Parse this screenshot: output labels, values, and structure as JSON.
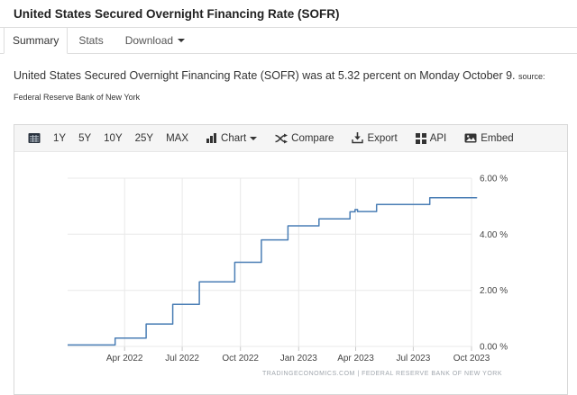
{
  "page": {
    "title": "United States Secured Overnight Financing Rate (SOFR)"
  },
  "tabs": [
    {
      "label": "Summary",
      "active": true
    },
    {
      "label": "Stats",
      "active": false
    },
    {
      "label": "Download",
      "active": false,
      "has_caret": true
    }
  ],
  "summary": {
    "text": "United States Secured Overnight Financing Rate (SOFR) was at 5.32 percent on Monday October 9.",
    "source_label": "source:",
    "source": "Federal Reserve Bank of New York"
  },
  "toolbar": {
    "calendar_icon": "calendar-table-icon",
    "range_buttons": [
      "1Y",
      "5Y",
      "10Y",
      "25Y",
      "MAX"
    ],
    "chart_label": "Chart",
    "compare_label": "Compare",
    "export_label": "Export",
    "api_label": "API",
    "embed_label": "Embed"
  },
  "chart_data": {
    "type": "line",
    "line_style": "step-after",
    "title": "",
    "xlabel": "",
    "ylabel": "",
    "ylim": [
      0,
      6
    ],
    "x_range": [
      "2022-01-01",
      "2023-10-01"
    ],
    "grid": true,
    "legend": "none",
    "colors": {
      "line": "#4a7eb5",
      "grid": "#e8e8e8",
      "tick_label": "#444444"
    },
    "y_ticks": [
      {
        "value": 0,
        "label": "0.00 %"
      },
      {
        "value": 2,
        "label": "2.00 %"
      },
      {
        "value": 4,
        "label": "4.00 %"
      },
      {
        "value": 6,
        "label": "6.00 %"
      }
    ],
    "x_ticks": [
      {
        "date": "2022-04-01",
        "label": "Apr 2022"
      },
      {
        "date": "2022-07-01",
        "label": "Jul 2022"
      },
      {
        "date": "2022-10-01",
        "label": "Oct 2022"
      },
      {
        "date": "2023-01-01",
        "label": "Jan 2023"
      },
      {
        "date": "2023-04-01",
        "label": "Apr 2023"
      },
      {
        "date": "2023-07-01",
        "label": "Jul 2023"
      },
      {
        "date": "2023-10-01",
        "label": "Oct 2023"
      }
    ],
    "series": [
      {
        "name": "SOFR",
        "color": "#4a7eb5",
        "points": [
          [
            "2022-01-01",
            0.05
          ],
          [
            "2022-03-17",
            0.3
          ],
          [
            "2022-05-05",
            0.8
          ],
          [
            "2022-06-16",
            1.5
          ],
          [
            "2022-07-28",
            2.3
          ],
          [
            "2022-09-22",
            3.0
          ],
          [
            "2022-11-03",
            3.8
          ],
          [
            "2022-12-15",
            4.3
          ],
          [
            "2023-02-02",
            4.55
          ],
          [
            "2023-03-23",
            4.8
          ],
          [
            "2023-03-31",
            4.88
          ],
          [
            "2023-04-04",
            4.81
          ],
          [
            "2023-05-04",
            5.06
          ],
          [
            "2023-07-27",
            5.3
          ],
          [
            "2023-10-09",
            5.32
          ]
        ]
      }
    ],
    "latest_value": 5.32,
    "latest_date": "Monday October 9",
    "attribution": "TRADINGECONOMICS.COM | FEDERAL RESERVE BANK OF NEW YORK"
  }
}
